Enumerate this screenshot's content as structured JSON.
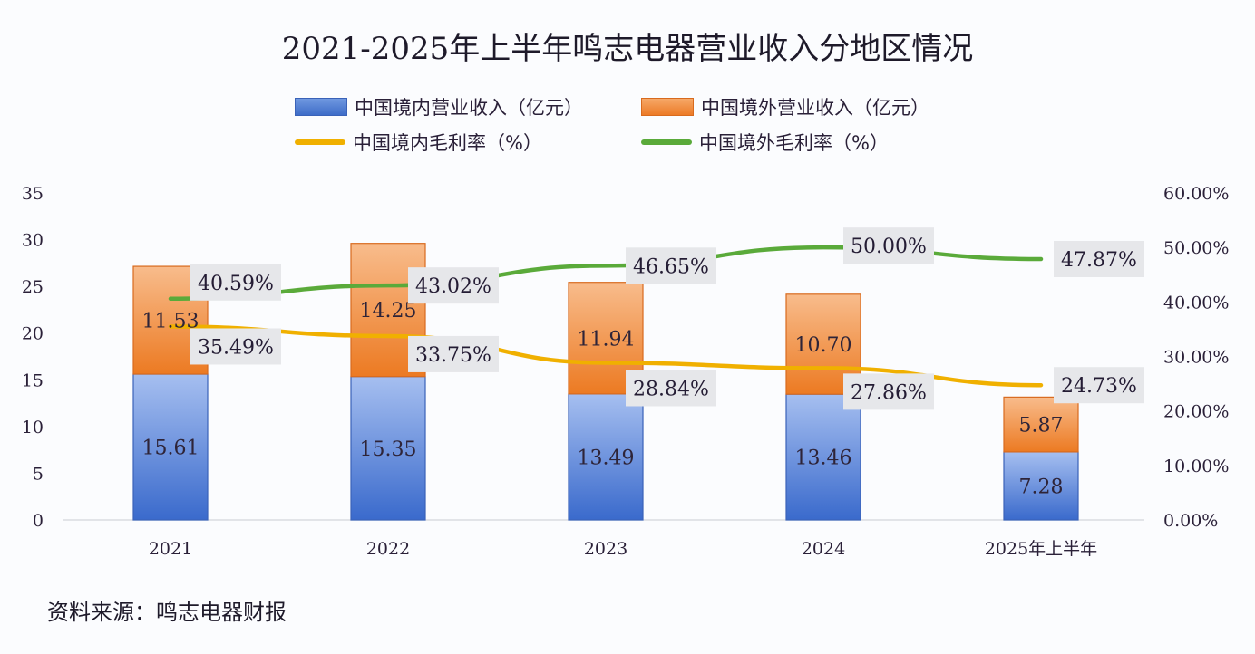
{
  "chart_data": {
    "type": "bar",
    "subtype": "stacked-bar-with-lines",
    "title": "2021-2025年上半年鸣志电器营业收入分地区情况",
    "categories": [
      "2021",
      "2022",
      "2023",
      "2024",
      "2025年上半年"
    ],
    "series": [
      {
        "name": "中国境内营业收入（亿元）",
        "type": "bar",
        "axis": "left",
        "color": "#4a78d0",
        "values": [
          15.61,
          15.35,
          13.49,
          13.46,
          7.28
        ],
        "labels": [
          "15.61",
          "15.35",
          "13.49",
          "13.46",
          "7.28"
        ]
      },
      {
        "name": "中国境外营业收入（亿元）",
        "type": "bar",
        "axis": "left",
        "color": "#f08a3c",
        "values": [
          11.53,
          14.25,
          11.94,
          10.7,
          5.87
        ],
        "labels": [
          "11.53",
          "14.25",
          "11.94",
          "10.70",
          "5.87"
        ]
      },
      {
        "name": "中国境内毛利率（%）",
        "type": "line",
        "axis": "right",
        "color": "#f0b000",
        "values": [
          35.49,
          33.75,
          28.84,
          27.86,
          24.73
        ],
        "labels": [
          "35.49%",
          "33.75%",
          "28.84%",
          "27.86%",
          "24.73%"
        ]
      },
      {
        "name": "中国境外毛利率（%）",
        "type": "line",
        "axis": "right",
        "color": "#5aaa3a",
        "values": [
          40.59,
          43.02,
          46.65,
          50.0,
          47.87
        ],
        "labels": [
          "40.59%",
          "43.02%",
          "46.65%",
          "50.00%",
          "47.87%"
        ]
      }
    ],
    "left_axis": {
      "ylim": [
        0,
        35
      ],
      "ticks": [
        "0",
        "5",
        "10",
        "15",
        "20",
        "25",
        "30",
        "35"
      ],
      "values": [
        0,
        5,
        10,
        15,
        20,
        25,
        30,
        35
      ]
    },
    "right_axis": {
      "ylim": [
        0,
        60
      ],
      "ticks": [
        "0.00%",
        "10.00%",
        "20.00%",
        "30.00%",
        "40.00%",
        "50.00%",
        "60.00%"
      ],
      "values": [
        0,
        10,
        20,
        30,
        40,
        50,
        60
      ]
    },
    "xlabel": "",
    "ylabel": "",
    "grid": false,
    "legend": "top-center"
  },
  "source": "资料来源：鸣志电器财报"
}
